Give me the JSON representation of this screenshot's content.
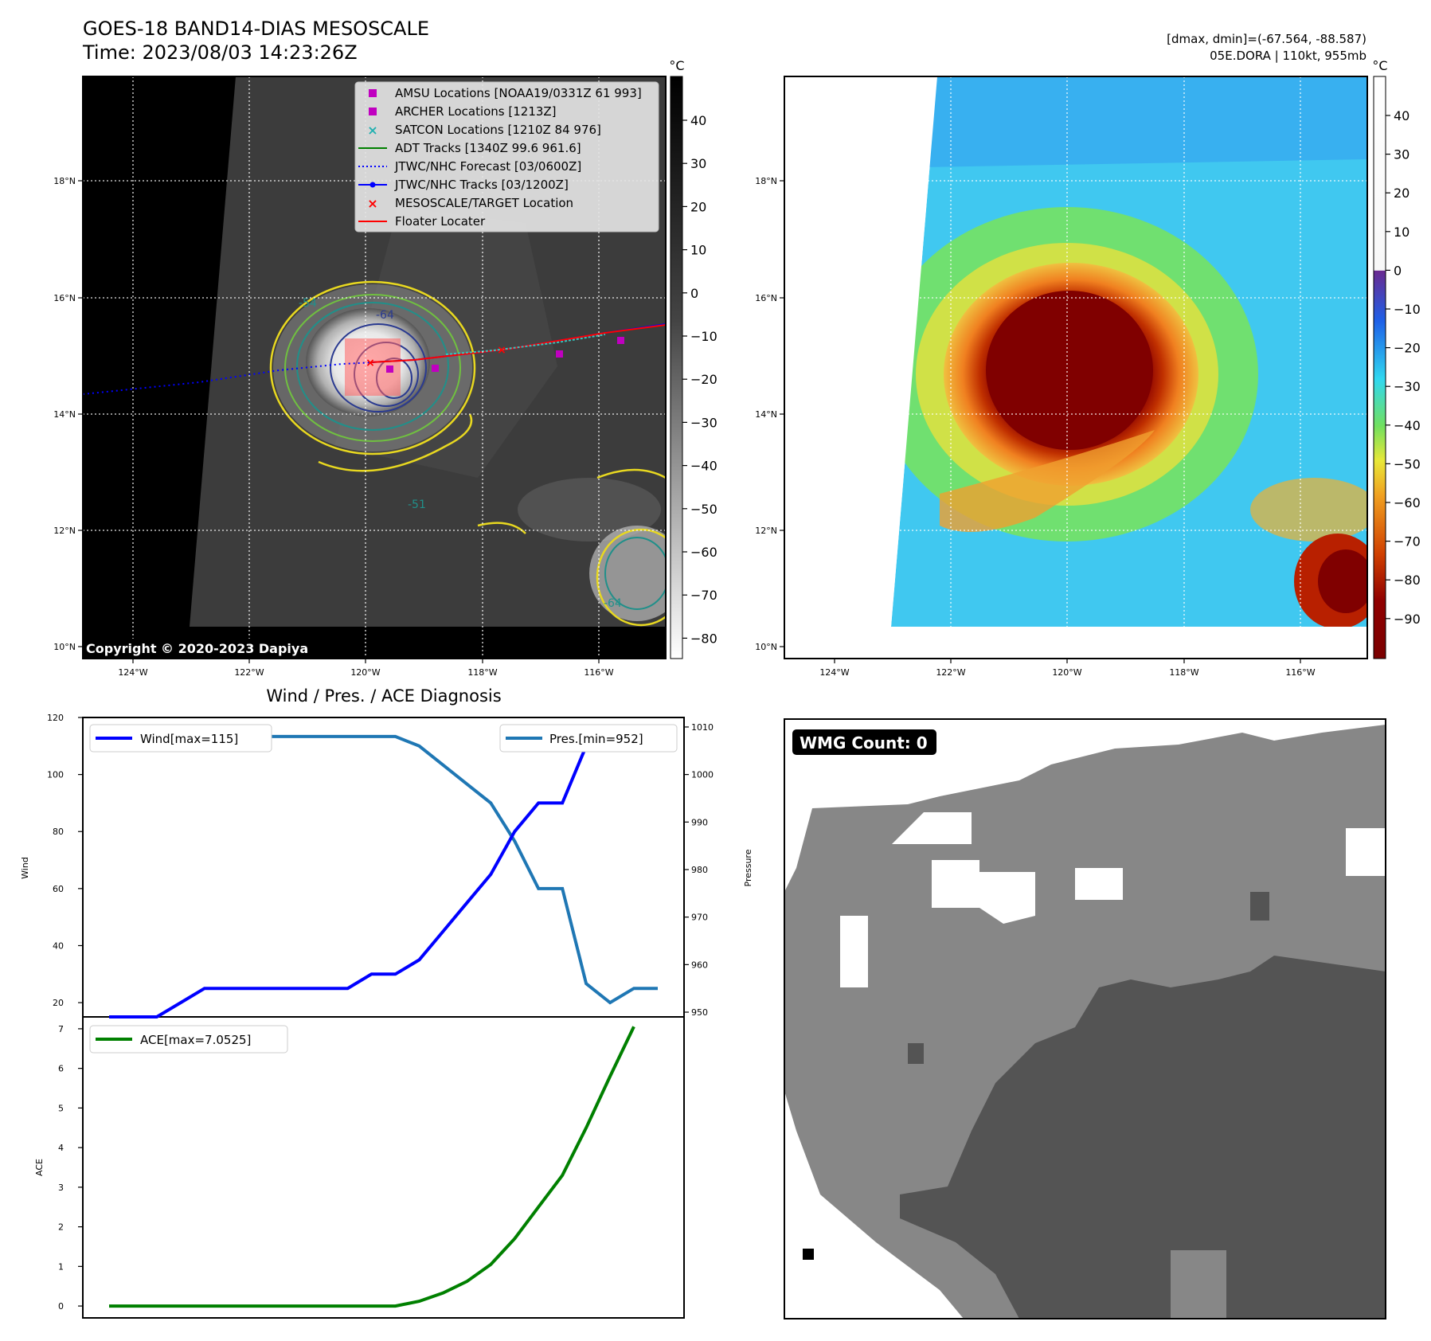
{
  "header": {
    "title_line1": "GOES-18 BAND14-DIAS MESOSCALE",
    "title_line2": "Time: 2023/08/03 14:23:26Z",
    "right_line1": "[dmax, dmin]=(-67.564, -88.587)",
    "right_line2": "05E.DORA | 110kt, 955mb"
  },
  "map_panels": {
    "lat_ticks": [
      "18°N",
      "16°N",
      "14°N",
      "12°N",
      "10°N"
    ],
    "lon_ticks": [
      "124°W",
      "122°W",
      "120°W",
      "118°W",
      "116°W"
    ],
    "colorbar_unit": "°C",
    "gray_colorbar_ticks": [
      "40",
      "30",
      "20",
      "10",
      "0",
      "−10",
      "−20",
      "−30",
      "−40",
      "−50",
      "−60",
      "−70",
      "−80"
    ],
    "color_colorbar_ticks": [
      "40",
      "30",
      "20",
      "10",
      "0",
      "−10",
      "−20",
      "−30",
      "−40",
      "−50",
      "−60",
      "−70",
      "−80",
      "−90"
    ],
    "copyright": "Copyright © 2020-2023 Dapiya",
    "contour_labels": [
      "-64",
      "-54",
      "-64",
      "-51"
    ],
    "legend": [
      {
        "label": "AMSU Locations [NOAA19/0331Z 61 993]",
        "color": "#c000c0",
        "marker": "square"
      },
      {
        "label": "ARCHER Locations [1213Z]",
        "color": "#c000c0",
        "marker": "square"
      },
      {
        "label": "SATCON Locations [1210Z 84 976]",
        "color": "#20b0b0",
        "marker": "x"
      },
      {
        "label": "ADT Tracks [1340Z 99.6 961.6]",
        "color": "#008000",
        "marker": "line"
      },
      {
        "label": "JTWC/NHC Forecast [03/0600Z]",
        "color": "#0000ff",
        "marker": "dotted"
      },
      {
        "label": "JTWC/NHC Tracks [03/1200Z]",
        "color": "#0000ff",
        "marker": "line-dot"
      },
      {
        "label": "MESOSCALE/TARGET Location",
        "color": "#ff0000",
        "marker": "x"
      },
      {
        "label": "Floater Locater",
        "color": "#ff0000",
        "marker": "line"
      }
    ]
  },
  "diagnosis": {
    "title": "Wind / Pres. / ACE Diagnosis",
    "wind_legend": "Wind[max=115]",
    "pres_legend": "Pres.[min=952]",
    "ace_legend": "ACE[max=7.0525]",
    "wind_ylabel": "Wind",
    "pres_ylabel": "Pressure",
    "ace_ylabel": "ACE",
    "colors": {
      "wind": "#0000ff",
      "pres": "#1f77b4",
      "ace": "#008000"
    }
  },
  "wmg": {
    "label": "WMG Count: 0"
  },
  "chart_data": [
    {
      "type": "line",
      "title": "Wind / Pres. / ACE Diagnosis",
      "x": [
        0,
        1,
        2,
        3,
        4,
        5,
        6,
        7,
        8,
        9,
        10,
        11,
        12,
        13,
        14,
        15,
        16,
        17,
        18,
        19,
        20,
        21,
        22,
        23
      ],
      "series": [
        {
          "name": "Wind[max=115]",
          "axis": "left",
          "values": [
            15,
            15,
            15,
            20,
            25,
            25,
            25,
            25,
            25,
            25,
            25,
            30,
            30,
            35,
            45,
            55,
            65,
            80,
            90,
            90,
            110,
            115,
            110,
            112
          ]
        },
        {
          "name": "Pres.[min=952]",
          "axis": "right",
          "values": [
            1010,
            1010,
            1010,
            1009,
            1009,
            1009,
            1008,
            1008,
            1008,
            1008,
            1008,
            1008,
            1008,
            1006,
            1002,
            998,
            994,
            986,
            976,
            976,
            956,
            952,
            955,
            955
          ]
        }
      ],
      "ylabel": "Wind",
      "ylim": [
        15,
        120
      ],
      "y_ticks": [
        "20",
        "40",
        "60",
        "80",
        "100",
        "120"
      ],
      "y2label": "Pressure",
      "y2lim": [
        949,
        1012
      ],
      "y2_ticks": [
        "950",
        "960",
        "970",
        "980",
        "990",
        "1000",
        "1010"
      ]
    },
    {
      "type": "line",
      "x": [
        0,
        1,
        2,
        3,
        4,
        5,
        6,
        7,
        8,
        9,
        10,
        11,
        12,
        13,
        14,
        15,
        16,
        17,
        18,
        19,
        20,
        21,
        22,
        23
      ],
      "series": [
        {
          "name": "ACE[max=7.0525]",
          "values": [
            0,
            0,
            0,
            0,
            0,
            0,
            0,
            0,
            0,
            0,
            0,
            0,
            0,
            0.12,
            0.33,
            0.62,
            1.05,
            1.7,
            2.5,
            3.3,
            4.5,
            5.8,
            7.0525,
            7.0525
          ]
        }
      ],
      "ylabel": "ACE",
      "ylim": [
        -0.3,
        7.3
      ],
      "y_ticks": [
        "0",
        "1",
        "2",
        "3",
        "4",
        "5",
        "6",
        "7"
      ]
    }
  ]
}
